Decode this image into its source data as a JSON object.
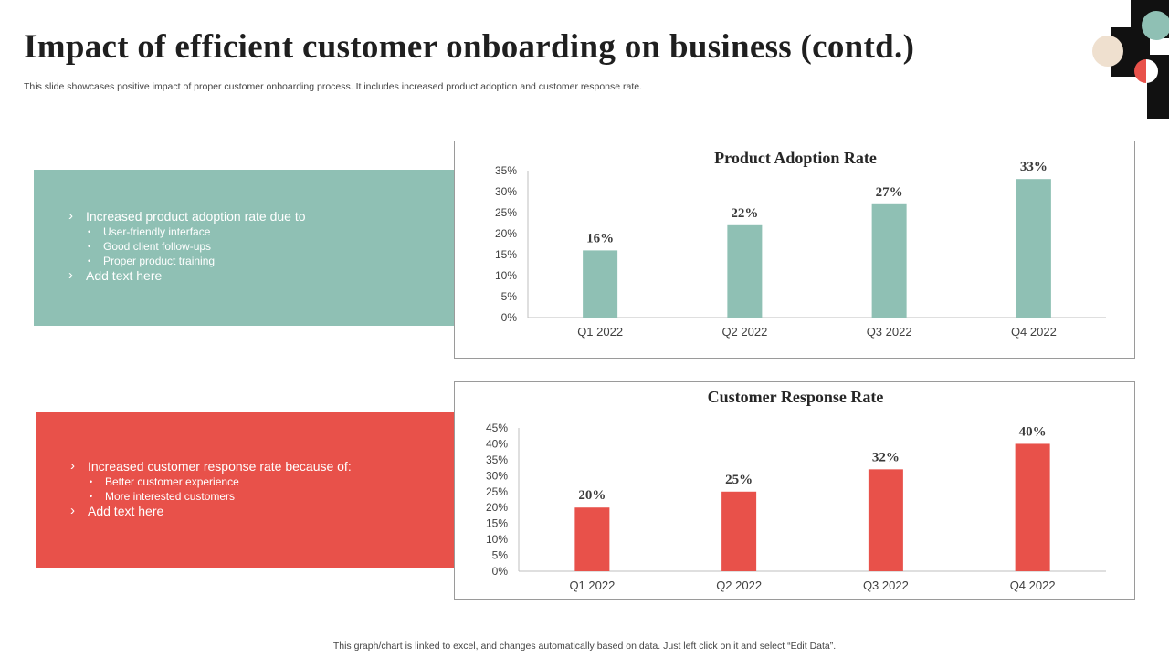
{
  "page": {
    "title": "Impact of efficient customer onboarding on business (contd.)",
    "subtitle": "This slide showcases positive impact of proper customer onboarding process. It includes increased product adoption and customer response rate.",
    "footer": "This graph/chart is linked to excel,  and changes automatically based on data. Just left click on it and select “Edit Data”."
  },
  "panels": {
    "adoption": {
      "color": "#8fc0b4",
      "main": "Increased product adoption rate due to",
      "subs": [
        "User-friendly  interface",
        "Good client follow-ups",
        "Proper product training"
      ],
      "extra": "Add text here"
    },
    "response": {
      "color": "#e8514a",
      "main": "Increased customer response rate because of:",
      "subs": [
        "Better customer experience",
        "More interested customers"
      ],
      "extra": "Add text here"
    }
  },
  "colors": {
    "teal": "#8fc0b4",
    "red": "#e8514a",
    "deco_beige": "#efe0cf",
    "deco_black": "#111111"
  },
  "chart_data": [
    {
      "type": "bar",
      "title": "Product Adoption Rate",
      "categories": [
        "Q1 2022",
        "Q2 2022",
        "Q3 2022",
        "Q4 2022"
      ],
      "values": [
        16,
        22,
        27,
        33
      ],
      "data_labels": [
        "16%",
        "22%",
        "27%",
        "33%"
      ],
      "yticks": [
        "0%",
        "5%",
        "10%",
        "15%",
        "20%",
        "25%",
        "30%",
        "35%"
      ],
      "ylim": [
        0,
        35
      ],
      "color": "#8fc0b4",
      "grid": false,
      "xlabel": "",
      "ylabel": ""
    },
    {
      "type": "bar",
      "title": "Customer Response Rate",
      "categories": [
        "Q1 2022",
        "Q2 2022",
        "Q3 2022",
        "Q4 2022"
      ],
      "values": [
        20,
        25,
        32,
        40
      ],
      "data_labels": [
        "20%",
        "25%",
        "32%",
        "40%"
      ],
      "yticks": [
        "0%",
        "5%",
        "10%",
        "15%",
        "20%",
        "25%",
        "30%",
        "35%",
        "40%",
        "45%"
      ],
      "ylim": [
        0,
        45
      ],
      "color": "#e8514a",
      "grid": false,
      "xlabel": "",
      "ylabel": ""
    }
  ]
}
